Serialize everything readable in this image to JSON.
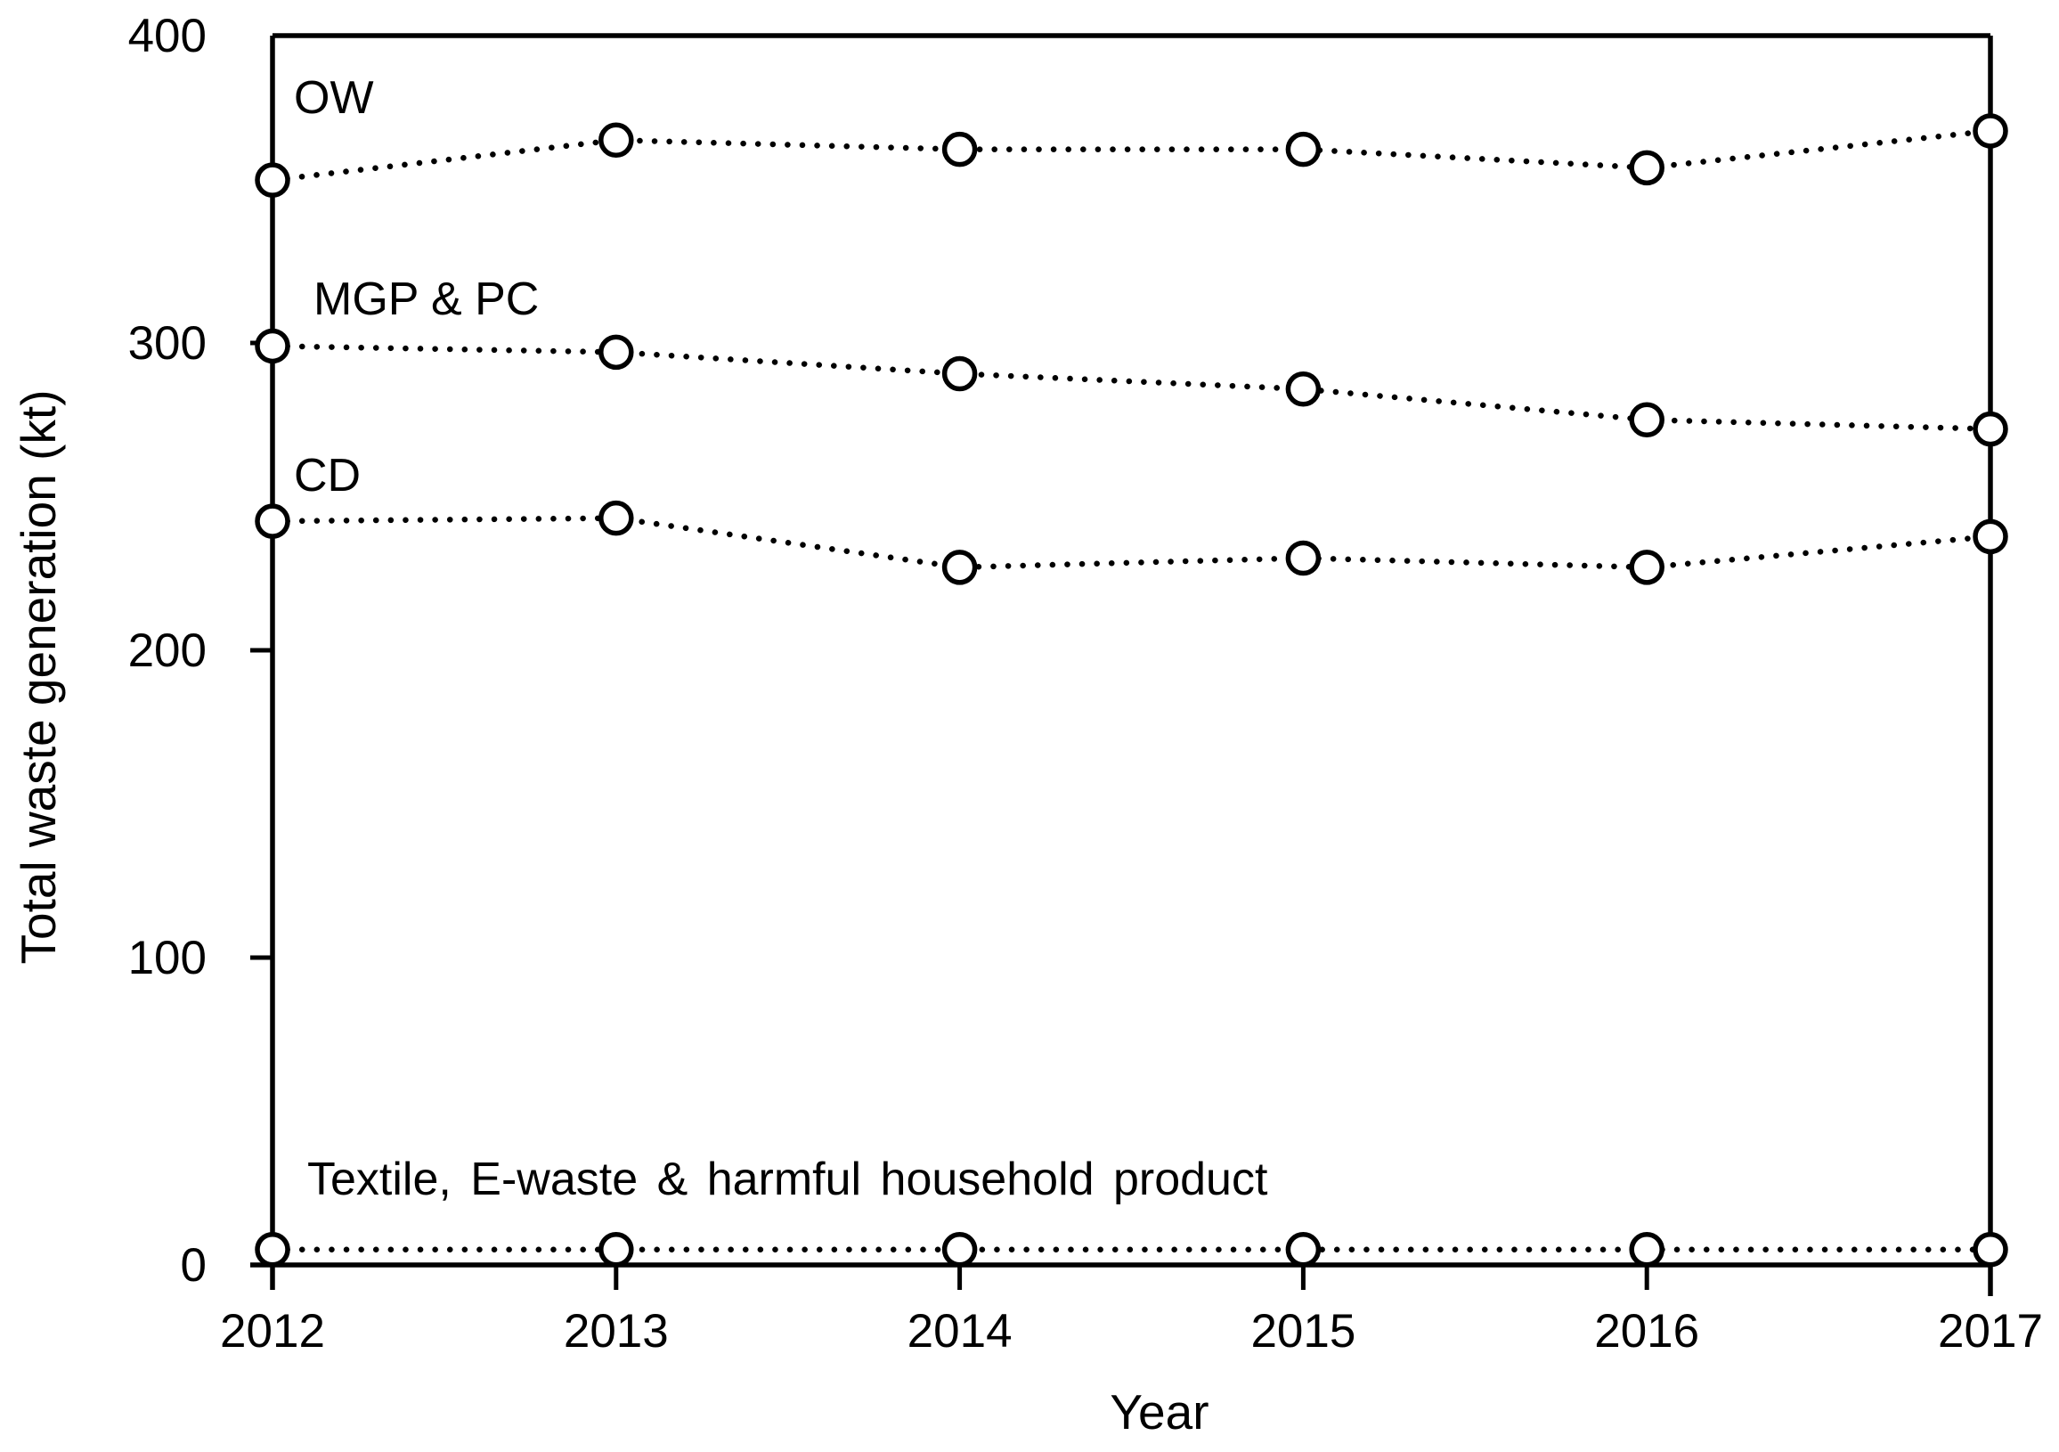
{
  "chart_data": {
    "type": "line",
    "title": "",
    "xlabel": "Year",
    "ylabel": "Total waste generation (kt)",
    "categories": [
      "2012",
      "2013",
      "2014",
      "2015",
      "2016",
      "2017"
    ],
    "yticks": [
      "0",
      "100",
      "200",
      "300",
      "400"
    ],
    "ylim": [
      0,
      400
    ],
    "grid": false,
    "legend_position": "inline-series-labels",
    "marker": "open-circle",
    "line_style": "dotted",
    "axis_color": "#000000",
    "background_color": "#ffffff",
    "series": [
      {
        "name": "OW",
        "values": [
          353,
          366,
          363,
          363,
          357,
          369
        ]
      },
      {
        "name": "MGP & PC",
        "values": [
          299,
          297,
          290,
          285,
          275,
          272
        ]
      },
      {
        "name": "CD",
        "values": [
          242,
          243,
          227,
          230,
          227,
          237
        ]
      },
      {
        "name": "Textile,  E-waste & harmful household product",
        "values": [
          5,
          5,
          5,
          5,
          5,
          5
        ]
      }
    ]
  }
}
